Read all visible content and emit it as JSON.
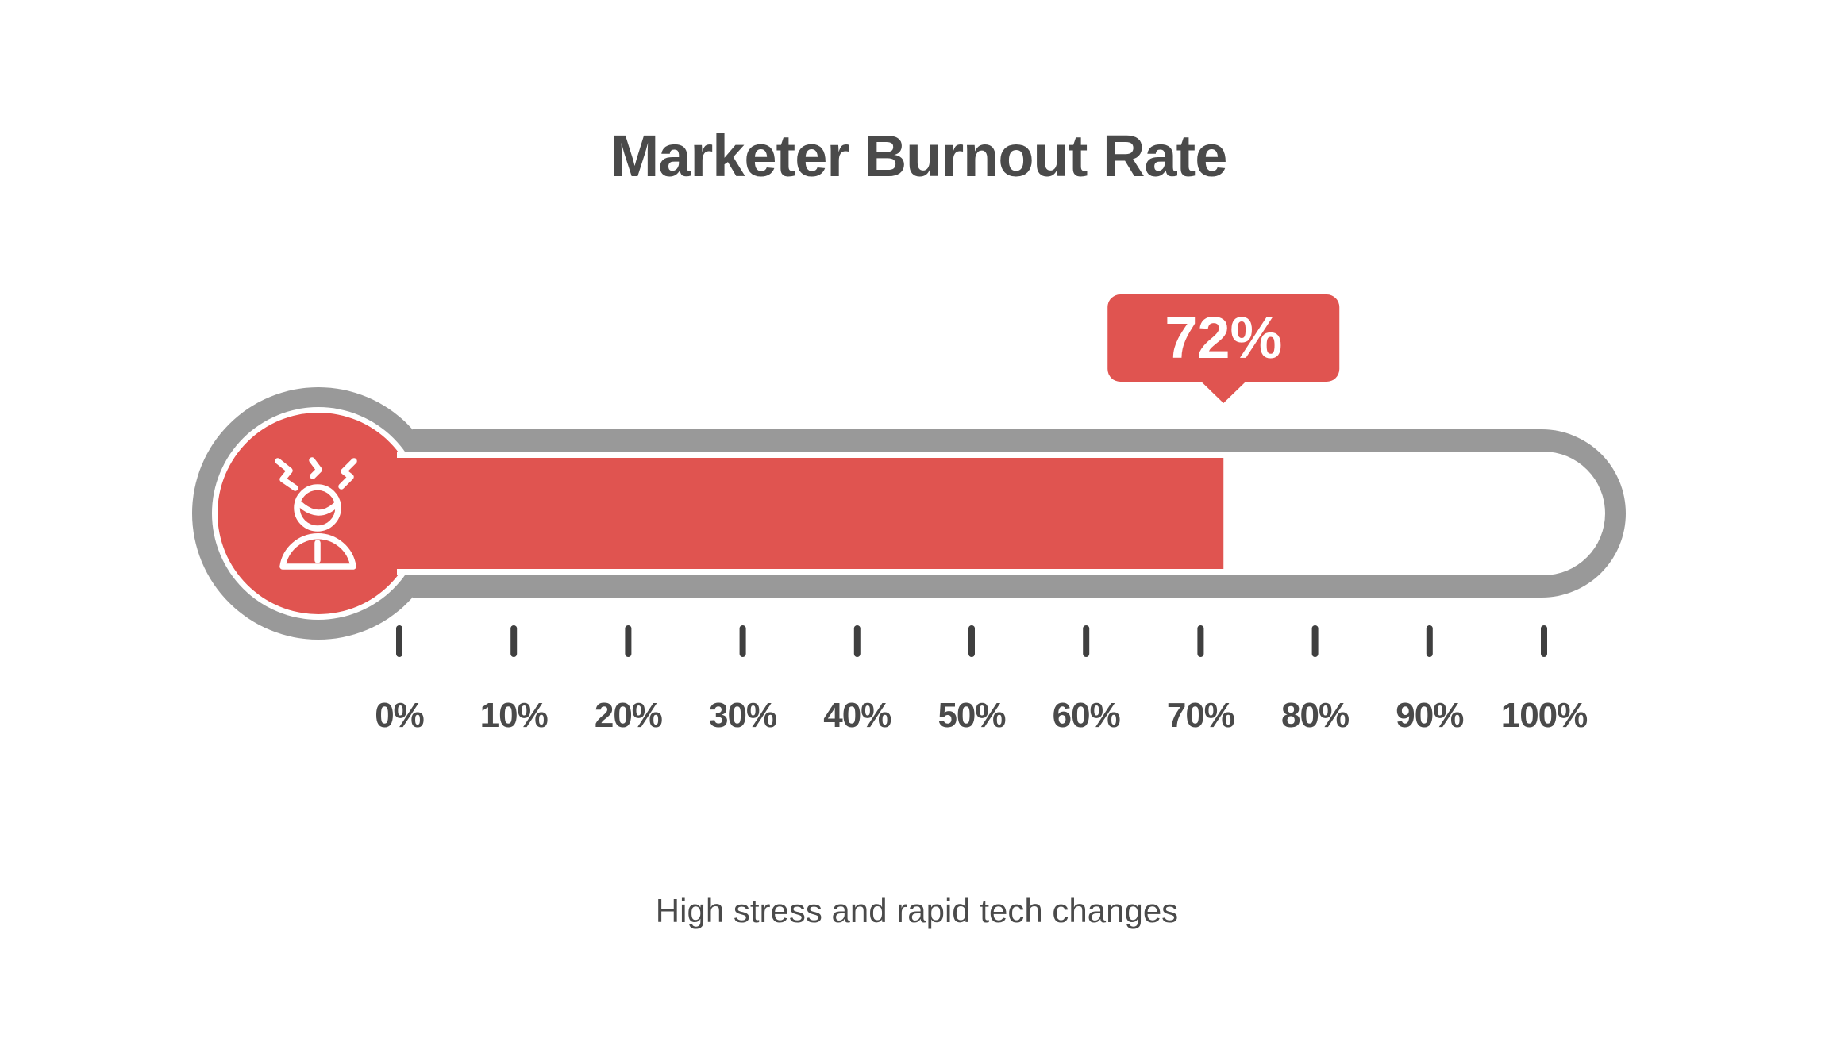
{
  "title": "Marketer Burnout Rate",
  "caption": "High stress and rapid tech changes",
  "colors": {
    "red": "#E05450",
    "gray": "#999999",
    "tick": "#3F3F3F",
    "text": "#4A4A4A",
    "white": "#FFFFFF",
    "background": "#FFFFFF"
  },
  "chart_data": {
    "type": "gauge",
    "variant": "thermometer",
    "title": "Marketer Burnout Rate",
    "value": 72,
    "value_label": "72%",
    "unit": "%",
    "axis": {
      "min": 0,
      "max": 100,
      "tick_step": 10,
      "tick_labels": [
        "0%",
        "10%",
        "20%",
        "30%",
        "40%",
        "50%",
        "60%",
        "70%",
        "80%",
        "90%",
        "100%"
      ]
    },
    "annotation": "High stress and rapid tech changes",
    "legend": "none",
    "grid": false
  }
}
